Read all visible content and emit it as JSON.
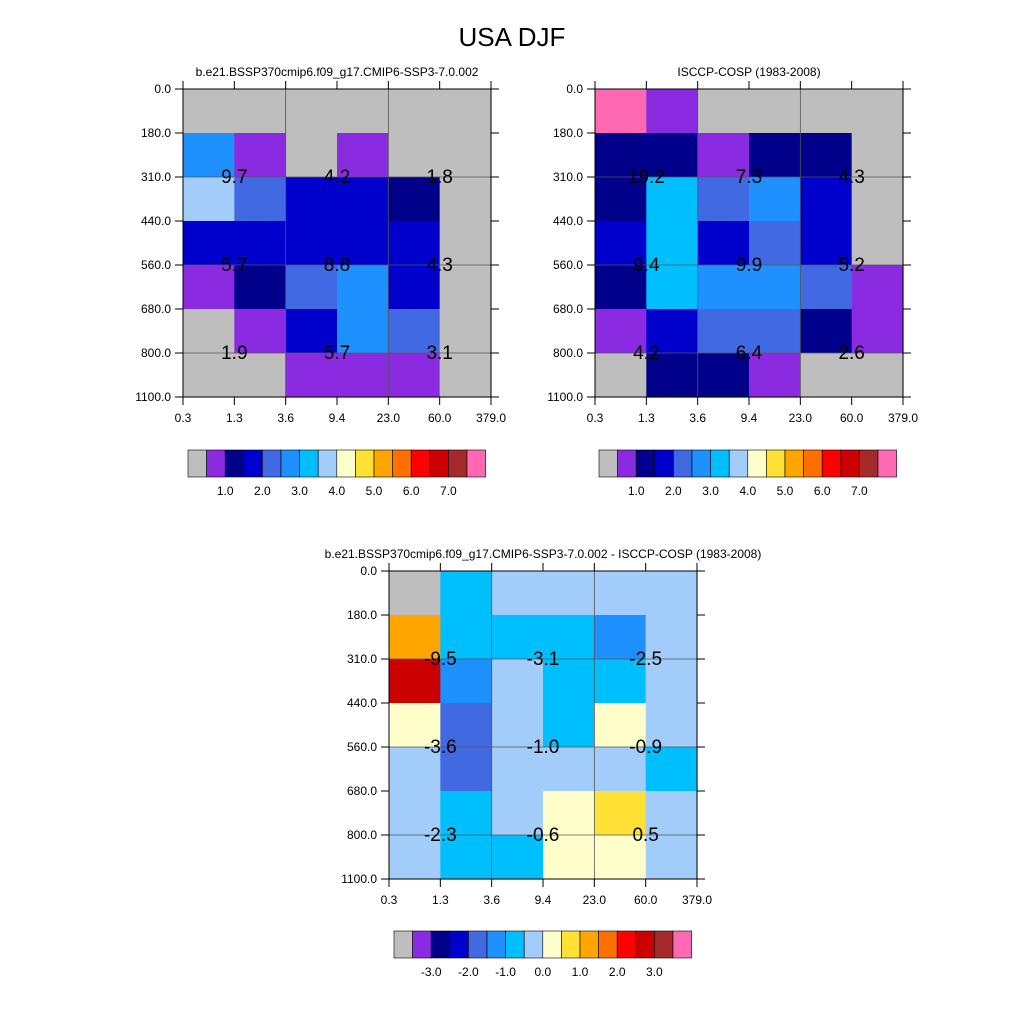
{
  "title": "USA DJF",
  "palette": [
    "#bebebe",
    "#8a2be2",
    "#00008b",
    "#0000cd",
    "#4169e1",
    "#1e90ff",
    "#00bfff",
    "#a2cdfa",
    "#ffffcc",
    "#ffe135",
    "#ffa500",
    "#ff7000",
    "#ff0000",
    "#cd0000",
    "#a52a2a",
    "#ff69b4"
  ],
  "chart_data": [
    {
      "type": "heatmap",
      "title": "b.e21.BSSP370cmip6.f09_g17.CMIP6-SSP3-7.0.002",
      "x_ticks": [
        "0.3",
        "1.3",
        "3.6",
        "9.4",
        "23.0",
        "60.0",
        "379.0"
      ],
      "y_ticks": [
        "0.0",
        "180.0",
        "310.0",
        "440.0",
        "560.0",
        "680.0",
        "800.0",
        "1100.0"
      ],
      "cells": [
        [
          0,
          0,
          0,
          0,
          0,
          0
        ],
        [
          5,
          1,
          0,
          1,
          0,
          0
        ],
        [
          7,
          4,
          3,
          3,
          2,
          0
        ],
        [
          3,
          3,
          3,
          3,
          3,
          0
        ],
        [
          1,
          2,
          4,
          5,
          3,
          0
        ],
        [
          0,
          1,
          3,
          5,
          4,
          0
        ],
        [
          0,
          0,
          1,
          1,
          1,
          0
        ]
      ],
      "labels": [
        {
          "row": 1,
          "col": 0.5,
          "text": "9.7"
        },
        {
          "row": 1,
          "col": 2.5,
          "text": "4.2"
        },
        {
          "row": 1,
          "col": 4.5,
          "text": "1.8"
        },
        {
          "row": 3,
          "col": 0.5,
          "text": "5.7"
        },
        {
          "row": 3,
          "col": 2.5,
          "text": "8.8"
        },
        {
          "row": 3,
          "col": 4.5,
          "text": "4.3"
        },
        {
          "row": 5,
          "col": 0.5,
          "text": "1.9"
        },
        {
          "row": 5,
          "col": 2.5,
          "text": "5.7"
        },
        {
          "row": 5,
          "col": 4.5,
          "text": "3.1"
        }
      ],
      "colorbar_labels": [
        "1.0",
        "2.0",
        "3.0",
        "4.0",
        "5.0",
        "6.0",
        "7.0"
      ]
    },
    {
      "type": "heatmap",
      "title": "ISCCP-COSP (1983-2008)",
      "x_ticks": [
        "0.3",
        "1.3",
        "3.6",
        "9.4",
        "23.0",
        "60.0",
        "379.0"
      ],
      "y_ticks": [
        "0.0",
        "180.0",
        "310.0",
        "440.0",
        "560.0",
        "680.0",
        "800.0",
        "1100.0"
      ],
      "cells": [
        [
          15,
          1,
          0,
          0,
          0,
          0
        ],
        [
          2,
          2,
          1,
          2,
          2,
          0
        ],
        [
          2,
          6,
          4,
          5,
          3,
          0
        ],
        [
          3,
          6,
          3,
          4,
          3,
          0
        ],
        [
          2,
          6,
          5,
          5,
          4,
          1
        ],
        [
          1,
          3,
          4,
          4,
          2,
          1
        ],
        [
          0,
          2,
          2,
          1,
          0,
          0
        ]
      ],
      "labels": [
        {
          "row": 1,
          "col": 0.5,
          "text": "19.2"
        },
        {
          "row": 1,
          "col": 2.5,
          "text": "7.3"
        },
        {
          "row": 1,
          "col": 4.5,
          "text": "4.3"
        },
        {
          "row": 3,
          "col": 0.5,
          "text": "9.4"
        },
        {
          "row": 3,
          "col": 2.5,
          "text": "9.9"
        },
        {
          "row": 3,
          "col": 4.5,
          "text": "5.2"
        },
        {
          "row": 5,
          "col": 0.5,
          "text": "4.2"
        },
        {
          "row": 5,
          "col": 2.5,
          "text": "6.4"
        },
        {
          "row": 5,
          "col": 4.5,
          "text": "2.6"
        }
      ],
      "colorbar_labels": [
        "1.0",
        "2.0",
        "3.0",
        "4.0",
        "5.0",
        "6.0",
        "7.0"
      ]
    },
    {
      "type": "heatmap",
      "title": "b.e21.BSSP370cmip6.f09_g17.CMIP6-SSP3-7.0.002 - ISCCP-COSP (1983-2008)",
      "x_ticks": [
        "0.3",
        "1.3",
        "3.6",
        "9.4",
        "23.0",
        "60.0",
        "379.0"
      ],
      "y_ticks": [
        "0.0",
        "180.0",
        "310.0",
        "440.0",
        "560.0",
        "680.0",
        "800.0",
        "1100.0"
      ],
      "cells": [
        [
          0,
          6,
          7,
          7,
          7,
          7
        ],
        [
          10,
          6,
          6,
          6,
          5,
          7
        ],
        [
          13,
          5,
          7,
          6,
          6,
          7
        ],
        [
          8,
          4,
          7,
          6,
          8,
          7
        ],
        [
          7,
          4,
          7,
          7,
          7,
          6
        ],
        [
          7,
          6,
          7,
          8,
          9,
          7
        ],
        [
          7,
          6,
          6,
          8,
          8,
          7
        ]
      ],
      "labels": [
        {
          "row": 1,
          "col": 0.5,
          "text": "-9.5"
        },
        {
          "row": 1,
          "col": 2.5,
          "text": "-3.1"
        },
        {
          "row": 1,
          "col": 4.5,
          "text": "-2.5"
        },
        {
          "row": 3,
          "col": 0.5,
          "text": "-3.6"
        },
        {
          "row": 3,
          "col": 2.5,
          "text": "-1.0"
        },
        {
          "row": 3,
          "col": 4.5,
          "text": "-0.9"
        },
        {
          "row": 5,
          "col": 0.5,
          "text": "-2.3"
        },
        {
          "row": 5,
          "col": 2.5,
          "text": "-0.6"
        },
        {
          "row": 5,
          "col": 4.5,
          "text": "0.5"
        }
      ],
      "colorbar_labels": [
        "-3.0",
        "-2.0",
        "-1.0",
        "0.0",
        "1.0",
        "2.0",
        "3.0"
      ]
    }
  ]
}
